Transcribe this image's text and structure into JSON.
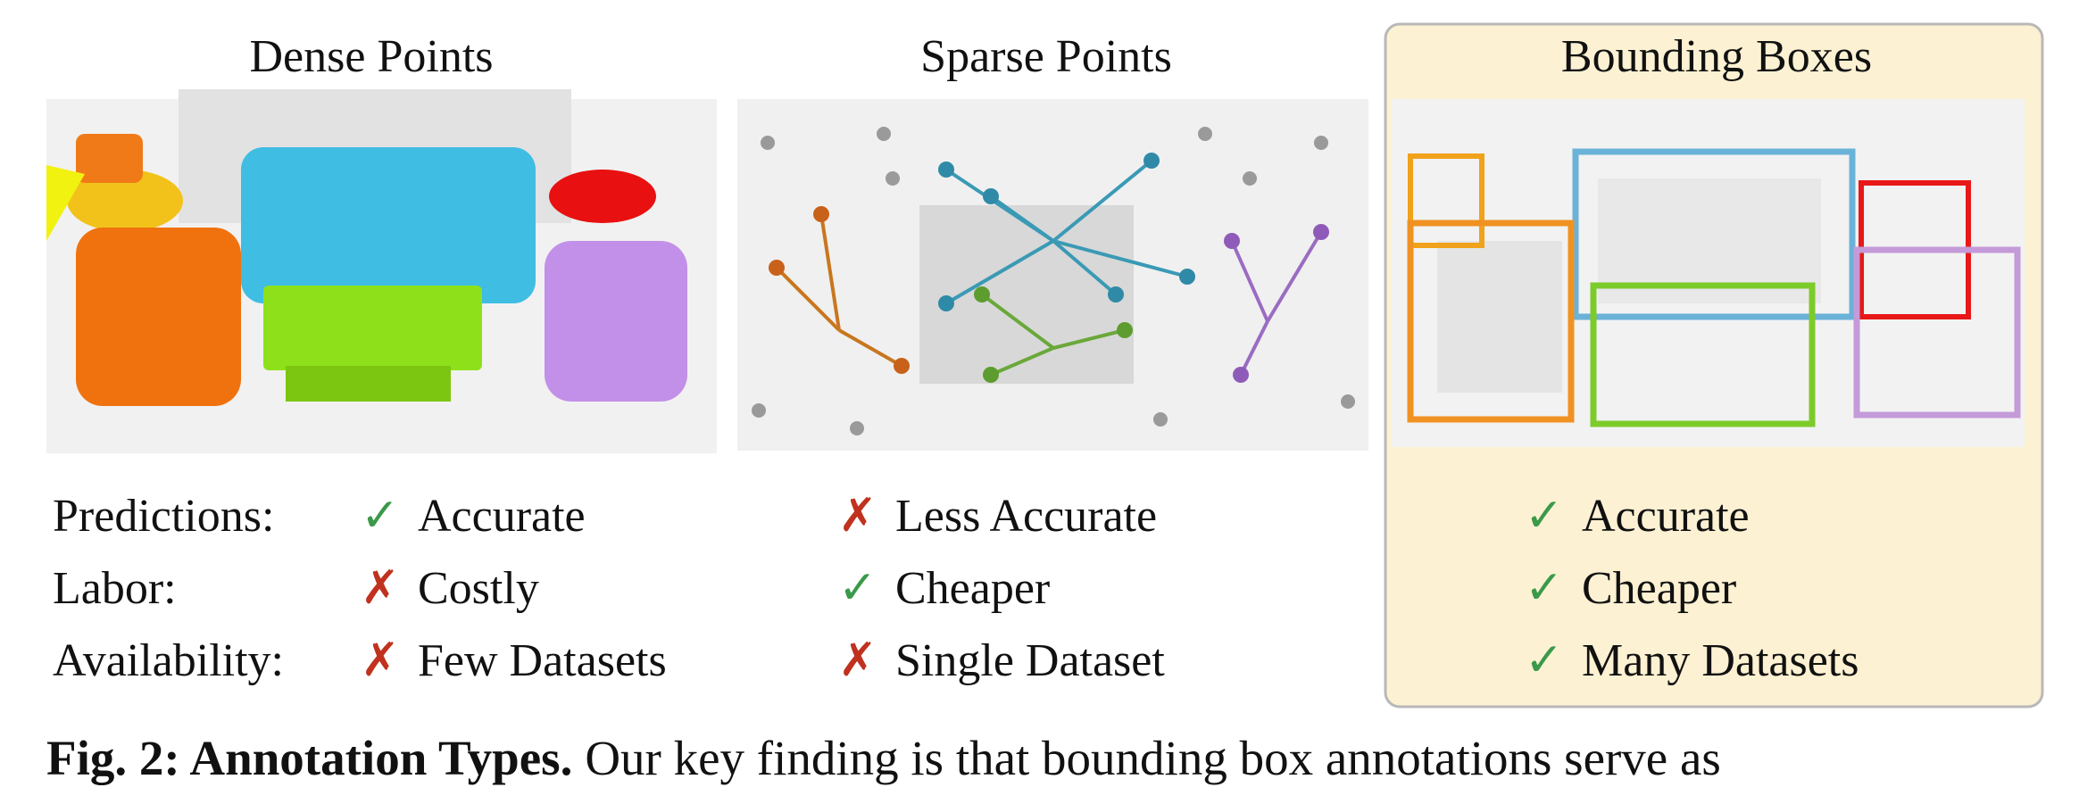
{
  "panels": [
    {
      "title": "Dense Points"
    },
    {
      "title": "Sparse Points"
    },
    {
      "title": "Bounding Boxes"
    }
  ],
  "rows": [
    {
      "label": "Predictions:",
      "cells": [
        {
          "mark": "✓",
          "text": "Accurate"
        },
        {
          "mark": "✗",
          "text": "Less Accurate"
        },
        {
          "mark": "✓",
          "text": "Accurate"
        }
      ]
    },
    {
      "label": "Labor:",
      "cells": [
        {
          "mark": "✗",
          "text": "Costly"
        },
        {
          "mark": "✓",
          "text": "Cheaper"
        },
        {
          "mark": "✓",
          "text": "Cheaper"
        }
      ]
    },
    {
      "label": "Availability:",
      "cells": [
        {
          "mark": "✗",
          "text": "Few Datasets"
        },
        {
          "mark": "✗",
          "text": "Single Dataset"
        },
        {
          "mark": "✓",
          "text": "Many Datasets"
        }
      ]
    }
  ],
  "caption": {
    "label": "Fig. 2: Annotation Types.",
    "text": "Our key finding is that bounding box annotations serve as"
  }
}
